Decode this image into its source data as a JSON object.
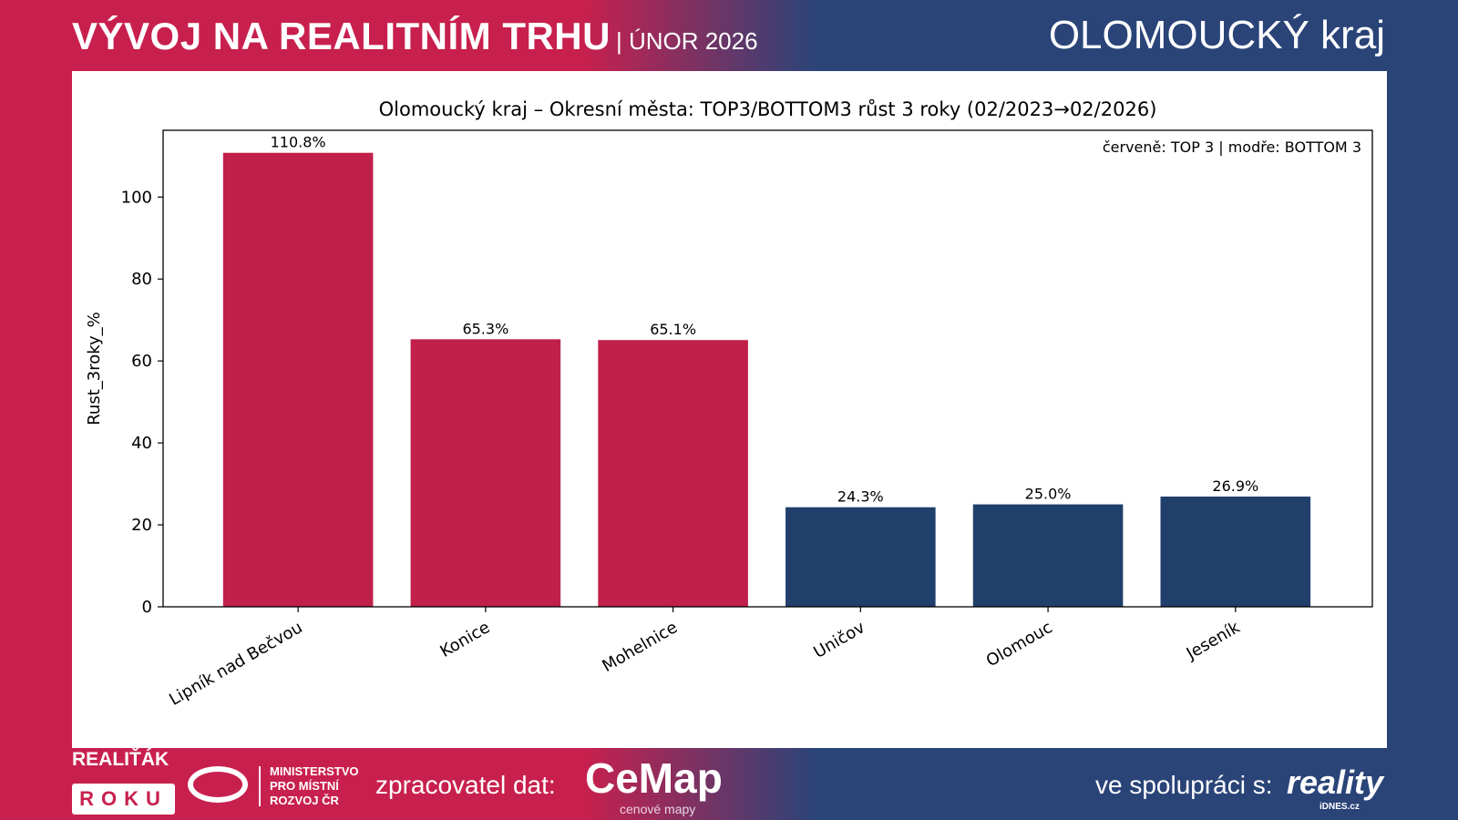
{
  "header": {
    "title": "VÝVOJ NA REALITNÍM TRHU",
    "subtitle": "| ÚNOR 2026",
    "region": "OLOMOUCKÝ kraj"
  },
  "colors": {
    "top": "#c0204a",
    "bottom": "#213f6b",
    "bg_left": "#c8204e",
    "bg_right": "#2a4478"
  },
  "chart_data": {
    "type": "bar",
    "title": "Olomoucký kraj – Okresní města: TOP3/BOTTOM3 růst 3 roky (02/2023→02/2026)",
    "annotation": "červeně: TOP 3 | modře: BOTTOM 3",
    "xlabel": "",
    "ylabel": "Rust_3roky_%",
    "ylim": [
      0,
      116.3
    ],
    "yticks": [
      0,
      20,
      40,
      60,
      80,
      100
    ],
    "categories": [
      "Lipník nad Bečvou",
      "Konice",
      "Mohelnice",
      "Uničov",
      "Olomouc",
      "Jeseník"
    ],
    "values": [
      110.8,
      65.3,
      65.1,
      24.3,
      25.0,
      26.9
    ],
    "labels": [
      "110.8%",
      "65.3%",
      "65.1%",
      "24.3%",
      "25.0%",
      "26.9%"
    ],
    "groups": [
      "top",
      "top",
      "top",
      "bottom",
      "bottom",
      "bottom"
    ],
    "grid": false
  },
  "footer": {
    "realitak_top": "REALIŤÁK",
    "realitak_bottom": "ROKU",
    "ministry": [
      "MINISTERSTVO",
      "PRO MÍSTNÍ",
      "ROZVOJ ČR"
    ],
    "processor_label": "zpracovatel dat:",
    "cemap": "CeMap",
    "cemap_sub": "cenové mapy",
    "partner_label": "ve spolupráci s:",
    "reality": "reality",
    "reality_sub": "iDNES.cz"
  }
}
